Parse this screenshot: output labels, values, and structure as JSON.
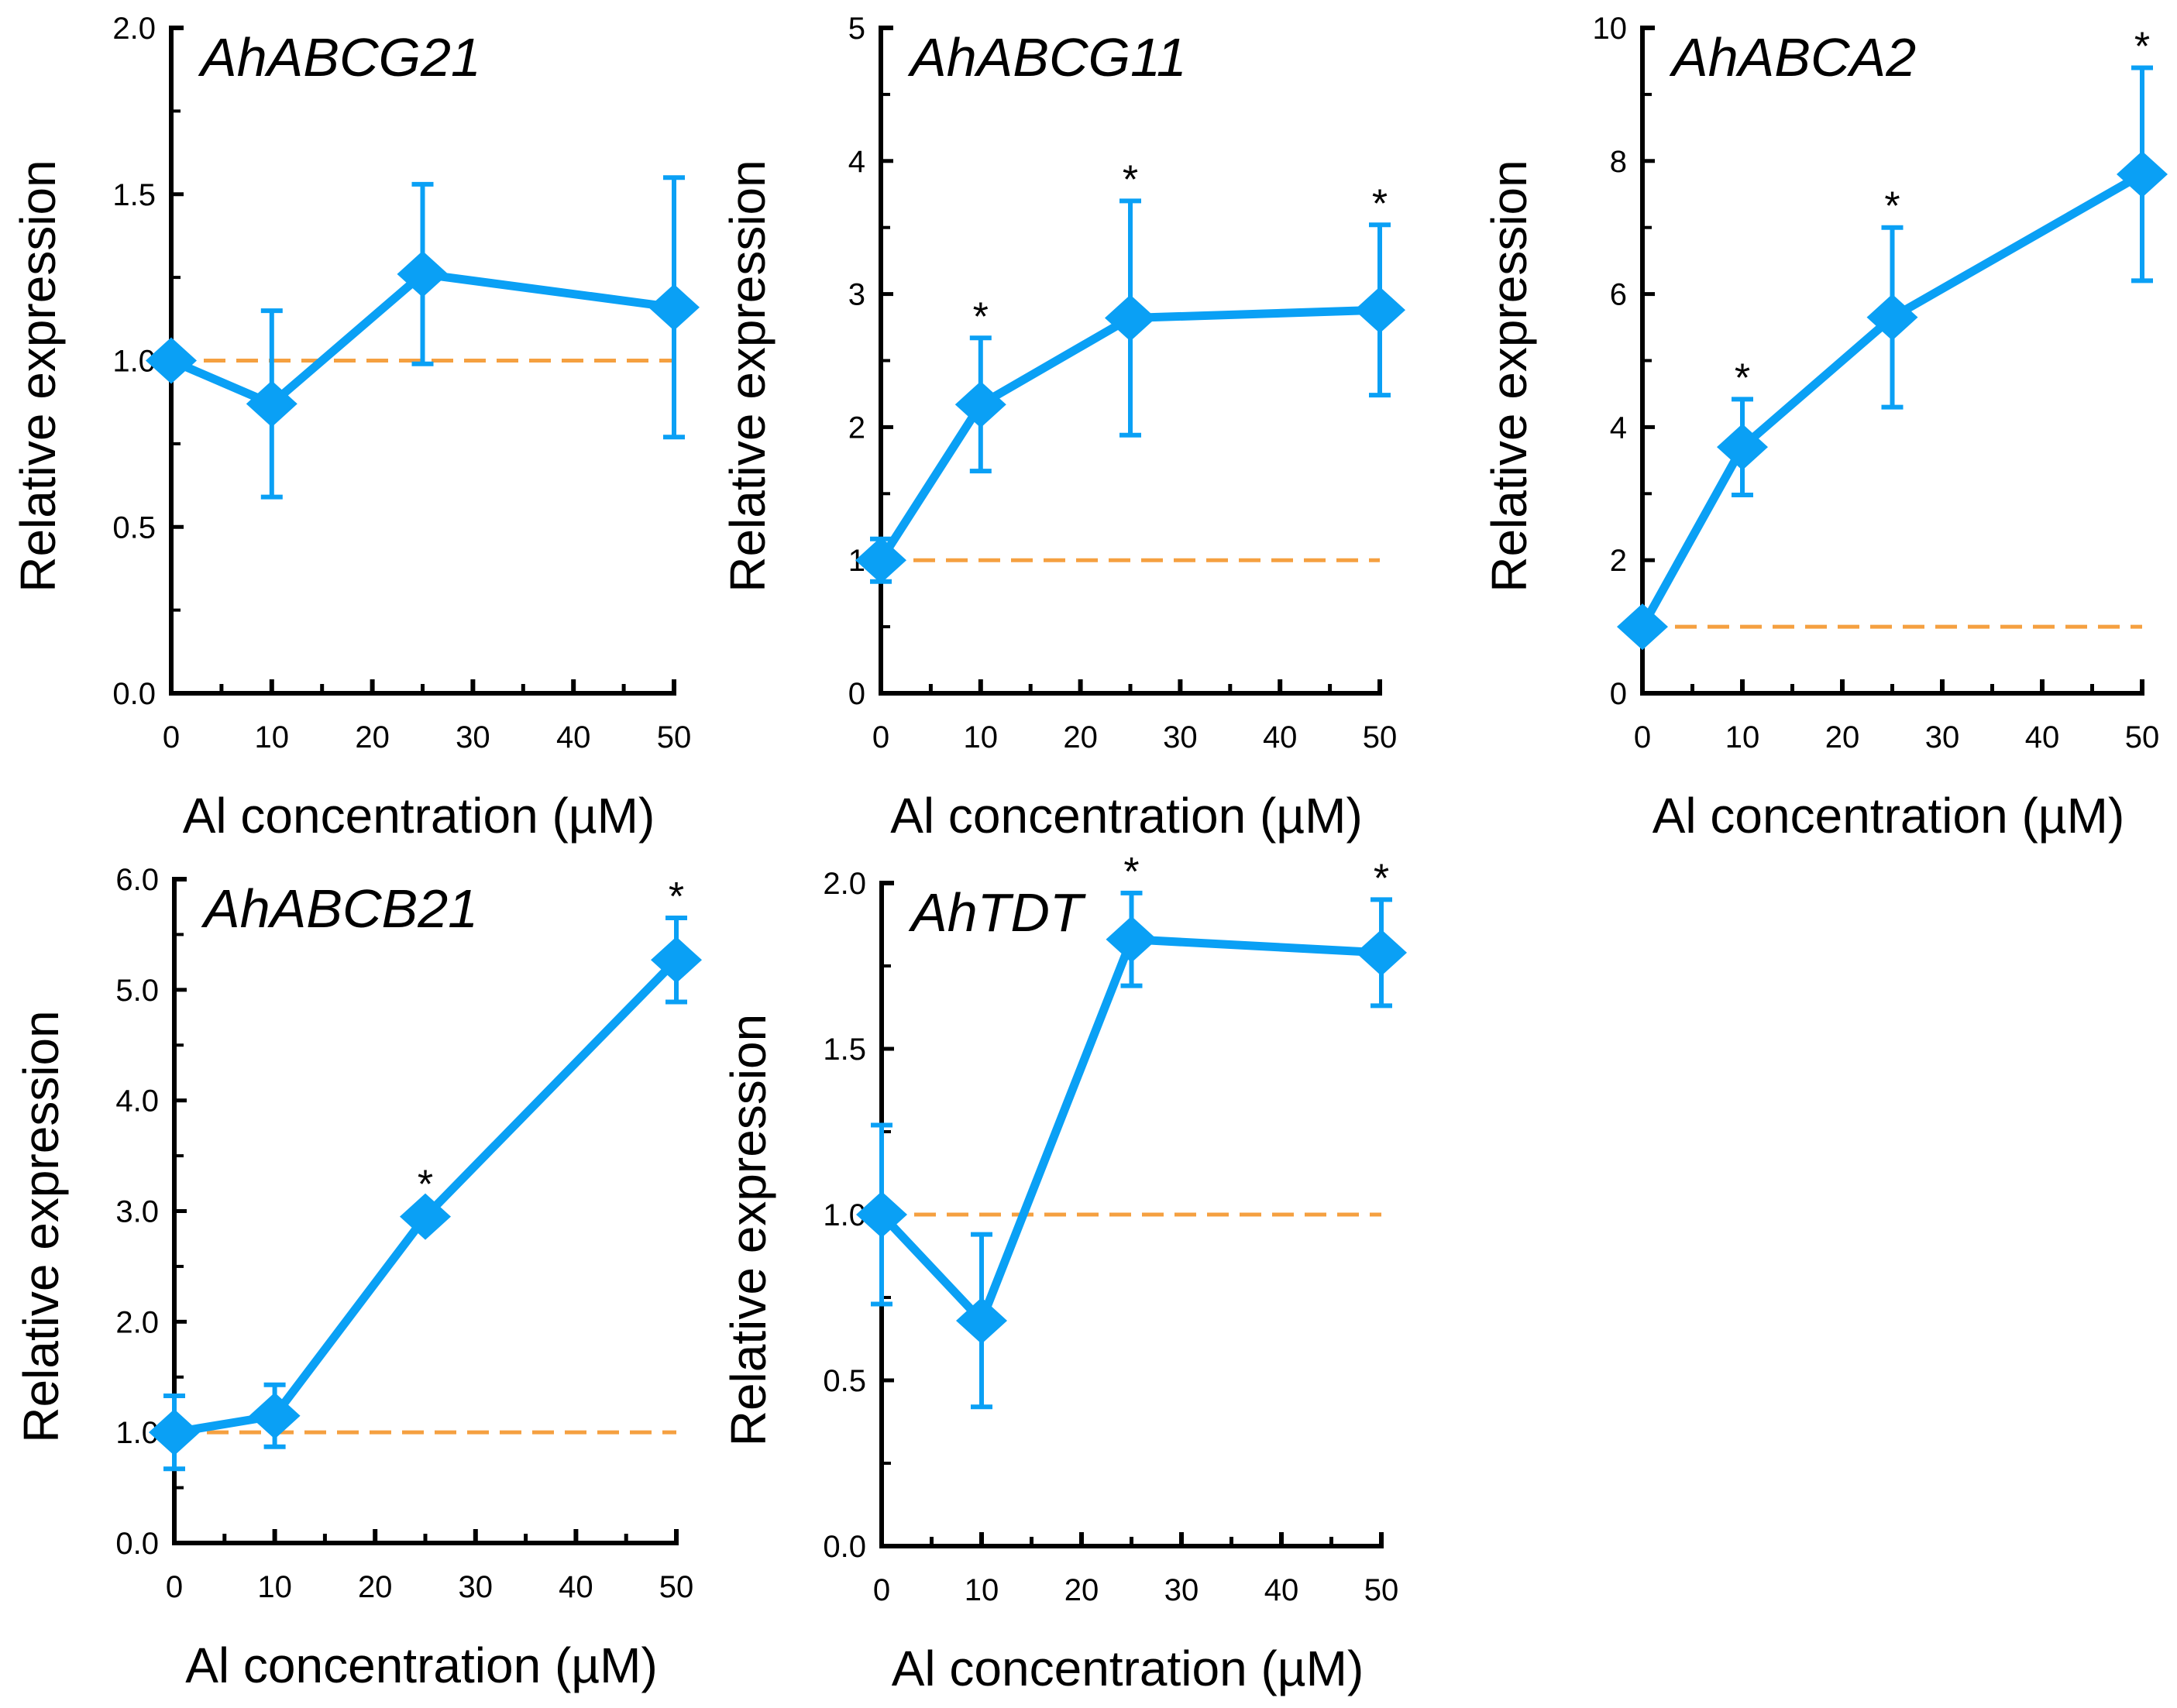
{
  "colors": {
    "series": "#0aa0f5",
    "reference": "#f5a040",
    "axis": "#000000"
  },
  "chart_data": [
    {
      "type": "line",
      "title": "AhABCG21",
      "xlabel": "Al concentration (µM)",
      "ylabel": "Relative expression",
      "x": [
        0,
        10,
        25,
        50
      ],
      "values": [
        1.0,
        0.87,
        1.26,
        1.16
      ],
      "errors": [
        0.0,
        0.28,
        0.27,
        0.39
      ],
      "significant": [
        false,
        false,
        false,
        false
      ],
      "star_label": "*",
      "xlim": [
        0,
        50
      ],
      "ylim": [
        0,
        2
      ],
      "xticks": [
        "0",
        "10",
        "20",
        "30",
        "40",
        "50"
      ],
      "yticks": [
        "0.0",
        "0.5",
        "1.0",
        "1.5",
        "2.0"
      ],
      "reference_line": 1.0
    },
    {
      "type": "line",
      "title": "AhABCG11",
      "xlabel": "Al concentration (µM)",
      "ylabel": "Relative expression",
      "x": [
        0,
        10,
        25,
        50
      ],
      "values": [
        1.0,
        2.17,
        2.82,
        2.88
      ],
      "errors": [
        0.16,
        0.5,
        0.88,
        0.64
      ],
      "significant": [
        false,
        true,
        true,
        true
      ],
      "star_label": "*",
      "xlim": [
        0,
        50
      ],
      "ylim": [
        0,
        5
      ],
      "xticks": [
        "0",
        "10",
        "20",
        "30",
        "40",
        "50"
      ],
      "yticks": [
        "0",
        "1",
        "2",
        "3",
        "4",
        "5"
      ],
      "reference_line": 1.0
    },
    {
      "type": "line",
      "title": "AhABCA2",
      "xlabel": "Al concentration (µM)",
      "ylabel": "Relative expression",
      "x": [
        0,
        10,
        25,
        50
      ],
      "values": [
        1.0,
        3.7,
        5.65,
        7.8
      ],
      "errors": [
        0.0,
        0.72,
        1.35,
        1.6
      ],
      "significant": [
        false,
        true,
        true,
        true
      ],
      "star_label": "*",
      "xlim": [
        0,
        50
      ],
      "ylim": [
        0,
        10
      ],
      "xticks": [
        "0",
        "10",
        "20",
        "30",
        "40",
        "50"
      ],
      "yticks": [
        "0",
        "2",
        "4",
        "6",
        "8",
        "10"
      ],
      "reference_line": 1.0
    },
    {
      "type": "line",
      "title": "AhABCB21",
      "xlabel": "Al concentration (µM)",
      "ylabel": "Relative expression",
      "x": [
        0,
        10,
        25,
        50
      ],
      "values": [
        1.0,
        1.15,
        2.95,
        5.27
      ],
      "errors": [
        0.33,
        0.28,
        0.1,
        0.38
      ],
      "significant": [
        false,
        false,
        true,
        true
      ],
      "star_label": "*",
      "xlim": [
        0,
        50
      ],
      "ylim": [
        0,
        6
      ],
      "xticks": [
        "0",
        "10",
        "20",
        "30",
        "40",
        "50"
      ],
      "yticks": [
        "0.0",
        "1.0",
        "2.0",
        "3.0",
        "4.0",
        "5.0",
        "6.0"
      ],
      "reference_line": 1.0
    },
    {
      "type": "line",
      "title": "AhTDT",
      "xlabel": "Al concentration (µM)",
      "ylabel": "Relative expression",
      "x": [
        0,
        10,
        25,
        50
      ],
      "values": [
        1.0,
        0.68,
        1.83,
        1.79
      ],
      "errors": [
        0.27,
        0.26,
        0.14,
        0.16
      ],
      "significant": [
        false,
        false,
        true,
        true
      ],
      "star_label": "*",
      "xlim": [
        0,
        50
      ],
      "ylim": [
        0,
        2
      ],
      "xticks": [
        "0",
        "10",
        "20",
        "30",
        "40",
        "50"
      ],
      "yticks": [
        "0.0",
        "0.5",
        "1.0",
        "1.5",
        "2.0"
      ],
      "reference_line": 1.0
    }
  ]
}
